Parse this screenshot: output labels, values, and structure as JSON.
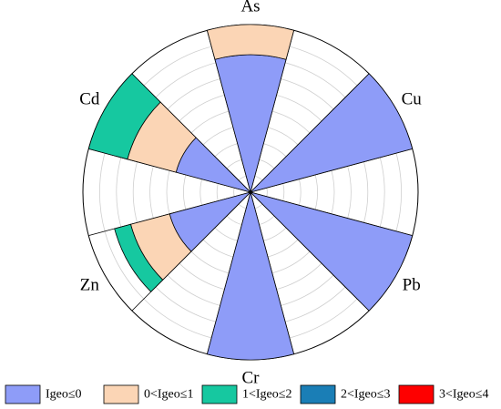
{
  "chart_data": {
    "type": "polar-bar",
    "categories": [
      "As",
      "Cu",
      "Pb",
      "Cr",
      "Zn",
      "Cd"
    ],
    "radial_max": 1.0,
    "ring_count": 10,
    "grid": true,
    "classes": [
      {
        "name": "Igeo≤0",
        "color": "#8e9cf8"
      },
      {
        "name": "0<Igeo≤1",
        "color": "#fbd5b5"
      },
      {
        "name": "1<Igeo≤2",
        "color": "#16c8a0"
      },
      {
        "name": "2<Igeo≤3",
        "color": "#1a7eb6"
      },
      {
        "name": "3<Igeo≤4",
        "color": "#fe0000"
      }
    ],
    "series": [
      {
        "name": "Igeo≤0",
        "values": [
          0.82,
          1.0,
          1.0,
          1.0,
          0.5,
          0.46
        ]
      },
      {
        "name": "0<Igeo≤1",
        "values": [
          0.18,
          0,
          0,
          0,
          0.24,
          0.3
        ]
      },
      {
        "name": "1<Igeo≤2",
        "values": [
          0,
          0,
          0,
          0,
          0.1,
          0.24
        ]
      },
      {
        "name": "2<Igeo≤3",
        "values": [
          0,
          0,
          0,
          0,
          0,
          0
        ]
      },
      {
        "name": "3<Igeo≤4",
        "values": [
          0,
          0,
          0,
          0,
          0,
          0
        ]
      }
    ],
    "legend_position": "bottom"
  }
}
